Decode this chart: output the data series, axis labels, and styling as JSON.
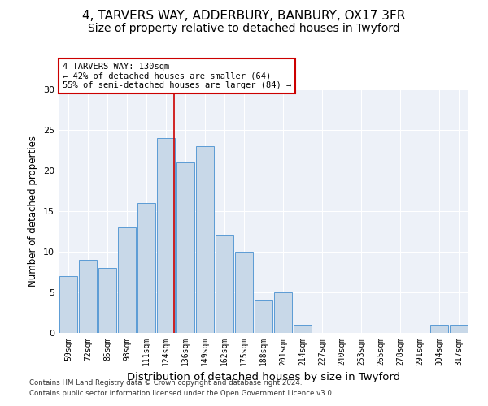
{
  "title1": "4, TARVERS WAY, ADDERBURY, BANBURY, OX17 3FR",
  "title2": "Size of property relative to detached houses in Twyford",
  "xlabel": "Distribution of detached houses by size in Twyford",
  "ylabel": "Number of detached properties",
  "categories": [
    "59sqm",
    "72sqm",
    "85sqm",
    "98sqm",
    "111sqm",
    "124sqm",
    "136sqm",
    "149sqm",
    "162sqm",
    "175sqm",
    "188sqm",
    "201sqm",
    "214sqm",
    "227sqm",
    "240sqm",
    "253sqm",
    "265sqm",
    "278sqm",
    "291sqm",
    "304sqm",
    "317sqm"
  ],
  "values": [
    7,
    9,
    8,
    13,
    16,
    24,
    21,
    23,
    12,
    10,
    4,
    5,
    1,
    0,
    0,
    0,
    0,
    0,
    0,
    1,
    1
  ],
  "bar_color": "#c8d8e8",
  "bar_edge_color": "#5b9bd5",
  "marker_label": "4 TARVERS WAY: 130sqm",
  "annotation_line1": "← 42% of detached houses are smaller (64)",
  "annotation_line2": "55% of semi-detached houses are larger (84) →",
  "vline_color": "#cc0000",
  "vline_x_pos": 5.42,
  "ylim": [
    0,
    30
  ],
  "yticks": [
    0,
    5,
    10,
    15,
    20,
    25,
    30
  ],
  "footer1": "Contains HM Land Registry data © Crown copyright and database right 2024.",
  "footer2": "Contains public sector information licensed under the Open Government Licence v3.0.",
  "bg_color": "#edf1f8",
  "title1_fontsize": 11,
  "title2_fontsize": 10,
  "xlabel_fontsize": 9.5,
  "ylabel_fontsize": 8.5
}
